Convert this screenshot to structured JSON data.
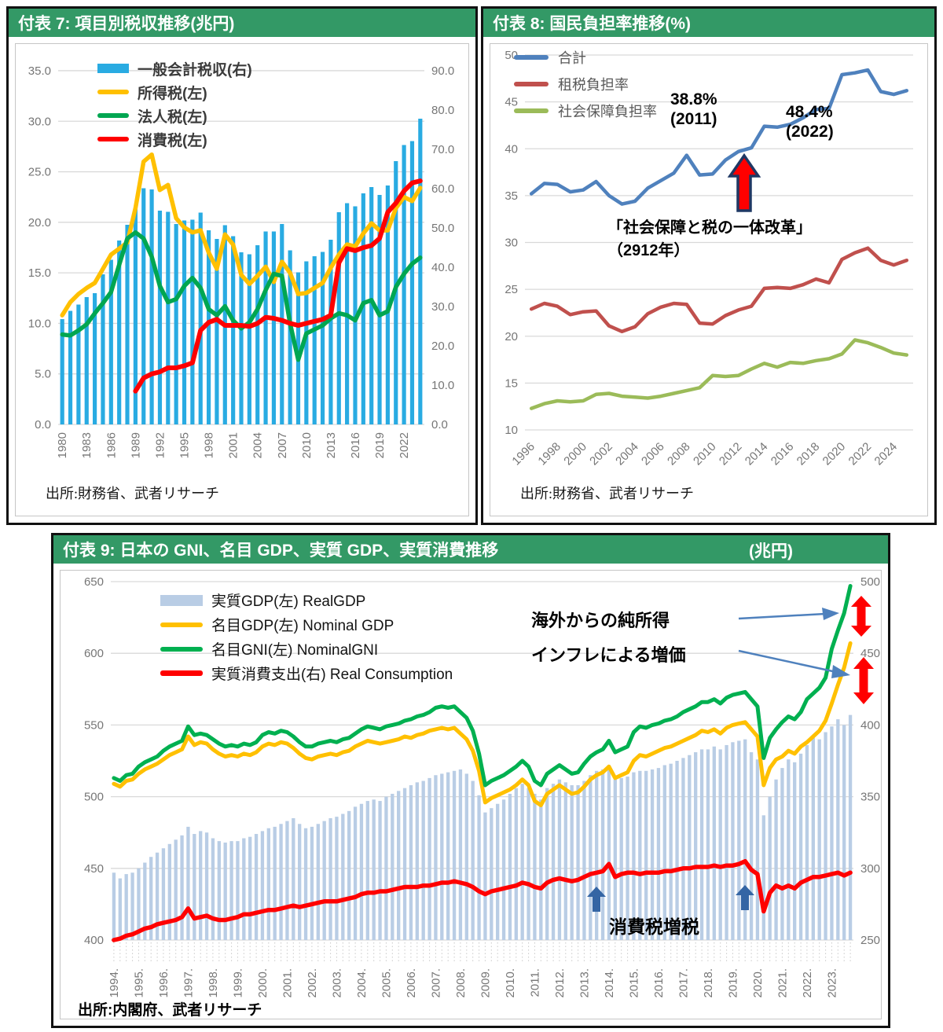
{
  "chart_data": [
    {
      "id": "fuhyo7",
      "type": "bar+line",
      "title": "付表 7: 項目別税収推移(兆円)",
      "source": "出所:財務省、武者リサーチ",
      "x_range": [
        1980,
        2024
      ],
      "frequency": "annual",
      "x_tick_labels": [
        "1980",
        "1983",
        "1986",
        "1989",
        "1992",
        "1995",
        "1998",
        "2001",
        "2004",
        "2007",
        "2010",
        "2013",
        "2016",
        "2019",
        "2022"
      ],
      "x_tick_step": 3,
      "left_axis": {
        "min": 0,
        "max": 37.33,
        "ticks": [
          0,
          5,
          10,
          15,
          20,
          25,
          30,
          35
        ],
        "decimals": 1
      },
      "right_axis": {
        "min": 0,
        "max": 96,
        "ticks": [
          0,
          10,
          20,
          30,
          40,
          50,
          60,
          70,
          80,
          90
        ],
        "decimals": 1
      },
      "grid": true,
      "legend_position": "top-left-inside",
      "series": [
        {
          "name": "一般会計税収(右)",
          "type": "bar",
          "axis": "right",
          "color": "#29ABE2",
          "barw": 0.5,
          "values": [
            26.8,
            28.9,
            30.5,
            32.4,
            33.4,
            38.2,
            41.9,
            46.8,
            50.8,
            54.9,
            60.1,
            59.8,
            54.4,
            54.1,
            51.0,
            51.9,
            52.1,
            53.9,
            49.4,
            47.2,
            50.7,
            47.9,
            43.8,
            43.3,
            45.6,
            49.1,
            49.1,
            51.0,
            44.3,
            38.7,
            41.5,
            42.8,
            43.9,
            47.0,
            54.0,
            56.3,
            55.5,
            58.8,
            60.4,
            58.4,
            60.8,
            67.0,
            71.1,
            72.1,
            77.8
          ]
        },
        {
          "name": "所得税(左)",
          "type": "line",
          "axis": "left",
          "color": "#FFC000",
          "lw": 5.5,
          "values": [
            10.8,
            12.1,
            12.9,
            13.5,
            14.0,
            15.4,
            16.8,
            17.4,
            18.0,
            21.4,
            26.0,
            26.7,
            23.2,
            23.7,
            20.4,
            19.5,
            19.0,
            19.2,
            17.0,
            15.4,
            18.8,
            17.8,
            14.8,
            13.9,
            14.7,
            15.6,
            14.1,
            16.1,
            15.0,
            12.9,
            13.0,
            13.5,
            14.0,
            15.5,
            16.8,
            17.8,
            17.6,
            18.9,
            19.9,
            19.2,
            19.2,
            21.4,
            22.5,
            22.1,
            23.4
          ]
        },
        {
          "name": "法人税(左)",
          "type": "line",
          "axis": "left",
          "color": "#00A651",
          "lw": 5.5,
          "values": [
            8.9,
            8.8,
            9.3,
            9.9,
            11.0,
            12.0,
            13.1,
            15.8,
            18.4,
            19.0,
            18.4,
            16.6,
            13.7,
            12.1,
            12.4,
            13.7,
            14.5,
            13.5,
            11.4,
            10.8,
            11.7,
            10.3,
            9.5,
            10.1,
            11.4,
            13.3,
            14.9,
            14.7,
            10.0,
            6.4,
            9.0,
            9.4,
            9.8,
            10.5,
            11.0,
            10.8,
            10.3,
            12.0,
            12.3,
            10.8,
            11.2,
            13.6,
            14.9,
            15.9,
            16.5
          ]
        },
        {
          "name": "消費税(左)",
          "type": "line",
          "axis": "left",
          "color": "#FF0000",
          "lw": 6,
          "values": [
            null,
            null,
            null,
            null,
            null,
            null,
            null,
            null,
            null,
            3.3,
            4.6,
            5.0,
            5.2,
            5.6,
            5.6,
            5.8,
            6.1,
            9.3,
            10.1,
            10.4,
            9.8,
            9.8,
            9.8,
            9.7,
            10.0,
            10.6,
            10.5,
            10.3,
            10.0,
            9.8,
            10.0,
            10.2,
            10.4,
            10.8,
            16.0,
            17.4,
            17.2,
            17.5,
            17.7,
            18.4,
            21.0,
            21.9,
            23.1,
            23.9,
            24.1
          ]
        }
      ]
    },
    {
      "id": "fuhyo8",
      "type": "line",
      "title": "付表 8: 国民負担率推移(%)",
      "source": "出所:財務省、武者リサーチ",
      "x_range": [
        1996,
        2025
      ],
      "frequency": "annual",
      "x_tick_labels": [
        "1996",
        "1998",
        "2000",
        "2002",
        "2004",
        "2006",
        "2008",
        "2010",
        "2012",
        "2014",
        "2016",
        "2018",
        "2020",
        "2022",
        "2024"
      ],
      "x_tick_step": 2,
      "left_axis": {
        "min": 10,
        "max": 50,
        "ticks": [
          10,
          15,
          20,
          25,
          30,
          35,
          40,
          45,
          50
        ],
        "decimals": 0
      },
      "grid": true,
      "legend_position": "top-left-inside",
      "series": [
        {
          "name": "合計",
          "type": "line",
          "axis": "left",
          "color": "#4F81BD",
          "lw": 4.5,
          "values": [
            35.2,
            36.3,
            36.2,
            35.4,
            35.6,
            36.5,
            35.0,
            34.1,
            34.4,
            35.8,
            36.6,
            37.4,
            39.3,
            37.2,
            37.3,
            38.8,
            39.7,
            40.1,
            42.4,
            42.3,
            42.6,
            43.3,
            44.2,
            44.3,
            47.9,
            48.1,
            48.4,
            46.1,
            45.8,
            46.2
          ]
        },
        {
          "name": "租税負担率",
          "type": "line",
          "axis": "left",
          "color": "#C0504D",
          "lw": 4.5,
          "values": [
            22.9,
            23.5,
            23.2,
            22.3,
            22.6,
            22.7,
            21.1,
            20.5,
            21.0,
            22.4,
            23.1,
            23.5,
            23.4,
            21.4,
            21.3,
            22.2,
            22.8,
            23.2,
            25.1,
            25.2,
            25.1,
            25.5,
            26.1,
            25.7,
            28.2,
            28.9,
            29.4,
            28.1,
            27.6,
            28.1
          ]
        },
        {
          "name": "社会保障負担率",
          "type": "line",
          "axis": "left",
          "color": "#9BBB59",
          "lw": 4.5,
          "values": [
            12.3,
            12.8,
            13.1,
            13.0,
            13.1,
            13.8,
            13.9,
            13.6,
            13.5,
            13.4,
            13.6,
            13.9,
            14.2,
            14.5,
            15.8,
            15.7,
            15.8,
            16.5,
            17.1,
            16.7,
            17.2,
            17.1,
            17.4,
            17.6,
            18.1,
            19.6,
            19.3,
            18.8,
            18.2,
            18.0
          ]
        }
      ],
      "annotations": {
        "peak2011": [
          "38.8%",
          "(2011)"
        ],
        "peak2022": [
          "48.4%",
          "(2022)"
        ],
        "reform": [
          "「社会保障と税の一体改革」",
          "（2912年）"
        ]
      }
    },
    {
      "id": "fuhyo9",
      "type": "bar+line",
      "title": "付表 9:  日本の GNI、名目 GDP、実質 GDP、実質消費推移",
      "title_unit": "(兆円)",
      "source": "出所:内閣府、武者リサーチ",
      "x_start": "1994Q1",
      "x_end": "2023Q4",
      "frequency": "quarterly",
      "x_tick_labels": [
        "1994.",
        "1995.",
        "1996.",
        "1997.",
        "1998.",
        "1999.",
        "2000.",
        "2001.",
        "2002.",
        "2003.",
        "2004.",
        "2005.",
        "2006.",
        "2007.",
        "2008.",
        "2009.",
        "2010.",
        "2011.",
        "2012.",
        "2013.",
        "2014.",
        "2015.",
        "2016.",
        "2017.",
        "2018.",
        "2019.",
        "2020.",
        "2021.",
        "2022.",
        "2023."
      ],
      "x_tick_step": 4,
      "left_axis": {
        "min": 400,
        "max": 650,
        "ticks": [
          400,
          450,
          500,
          550,
          600,
          650
        ],
        "decimals": 0
      },
      "right_axis": {
        "min": 250,
        "max": 500,
        "ticks": [
          250,
          300,
          350,
          400,
          450,
          500
        ],
        "decimals": 0
      },
      "grid": true,
      "legend_position": "top-left-inside",
      "series": [
        {
          "name": "実質GDP(左) RealGDP",
          "type": "bar",
          "axis": "left",
          "color": "#B9CDE5",
          "barw": 0.55,
          "values": [
            447,
            443,
            446,
            447,
            450,
            454,
            458,
            461,
            464,
            467,
            470,
            473,
            479,
            474,
            476,
            475,
            471,
            469,
            468,
            469,
            469,
            471,
            472,
            474,
            476,
            478,
            479,
            481,
            483,
            485,
            481,
            478,
            479,
            481,
            483,
            485,
            486,
            488,
            490,
            493,
            495,
            497,
            498,
            497,
            500,
            502,
            504,
            506,
            508,
            510,
            511,
            513,
            515,
            516,
            517,
            518,
            519,
            516,
            511,
            501,
            489,
            492,
            495,
            498,
            502,
            506,
            509,
            506,
            502,
            498,
            506,
            509,
            512,
            510,
            508,
            508,
            511,
            515,
            518,
            519,
            522,
            512,
            513,
            514,
            517,
            518,
            518,
            519,
            520,
            522,
            523,
            525,
            527,
            529,
            531,
            533,
            533,
            535,
            533,
            536,
            538,
            539,
            540,
            531,
            526,
            487,
            500,
            512,
            520,
            526,
            524,
            530,
            536,
            541,
            540,
            545,
            549,
            554,
            550,
            557
          ]
        },
        {
          "name": "名目GDP(左) Nominal GDP",
          "type": "line",
          "axis": "left",
          "color": "#FFC000",
          "lw": 5,
          "values": [
            509,
            507,
            511,
            512,
            516,
            519,
            521,
            523,
            526,
            529,
            531,
            533,
            542,
            536,
            538,
            537,
            533,
            530,
            528,
            529,
            528,
            530,
            529,
            531,
            535,
            537,
            536,
            538,
            537,
            534,
            530,
            527,
            526,
            528,
            529,
            530,
            529,
            531,
            532,
            535,
            537,
            539,
            538,
            537,
            538,
            539,
            540,
            542,
            541,
            543,
            544,
            546,
            547,
            548,
            547,
            548,
            544,
            540,
            532,
            518,
            496,
            499,
            501,
            503,
            505,
            508,
            512,
            508,
            497,
            494,
            502,
            505,
            508,
            505,
            502,
            503,
            507,
            512,
            515,
            517,
            521,
            513,
            515,
            517,
            525,
            529,
            528,
            530,
            532,
            534,
            535,
            537,
            539,
            541,
            543,
            546,
            545,
            547,
            544,
            548,
            550,
            551,
            552,
            547,
            542,
            508,
            520,
            526,
            528,
            532,
            530,
            535,
            538,
            542,
            546,
            553,
            565,
            578,
            590,
            607
          ]
        },
        {
          "name": "名目GNI(左) NominalGNI",
          "type": "line",
          "axis": "left",
          "color": "#00B050",
          "lw": 5,
          "values": [
            513,
            511,
            515,
            516,
            521,
            524,
            526,
            528,
            532,
            535,
            537,
            539,
            549,
            543,
            544,
            543,
            540,
            537,
            535,
            536,
            535,
            537,
            536,
            538,
            543,
            545,
            544,
            546,
            545,
            542,
            538,
            535,
            535,
            537,
            538,
            539,
            538,
            540,
            541,
            544,
            547,
            549,
            548,
            547,
            549,
            550,
            551,
            553,
            554,
            556,
            557,
            559,
            562,
            563,
            562,
            563,
            559,
            555,
            546,
            530,
            508,
            511,
            513,
            515,
            518,
            521,
            525,
            521,
            511,
            508,
            516,
            519,
            522,
            519,
            516,
            517,
            523,
            528,
            531,
            533,
            539,
            531,
            533,
            535,
            545,
            549,
            548,
            550,
            551,
            553,
            554,
            556,
            559,
            561,
            563,
            566,
            566,
            568,
            565,
            569,
            571,
            572,
            573,
            568,
            563,
            527,
            541,
            547,
            552,
            556,
            554,
            559,
            568,
            572,
            576,
            583,
            603,
            616,
            628,
            647
          ]
        },
        {
          "name": "実質消費支出(右) Real Consumption",
          "type": "line",
          "axis": "right",
          "color": "#FF0000",
          "lw": 5.5,
          "values": [
            250,
            251,
            253,
            254,
            256,
            258,
            259,
            261,
            262,
            263,
            264,
            266,
            272,
            265,
            266,
            267,
            265,
            264,
            264,
            265,
            266,
            268,
            268,
            269,
            270,
            271,
            271,
            272,
            273,
            274,
            273,
            274,
            275,
            276,
            277,
            277,
            277,
            278,
            279,
            280,
            282,
            283,
            283,
            284,
            284,
            285,
            286,
            287,
            287,
            287,
            288,
            288,
            289,
            290,
            290,
            291,
            290,
            289,
            287,
            284,
            282,
            284,
            285,
            286,
            287,
            288,
            290,
            289,
            287,
            286,
            290,
            292,
            293,
            292,
            291,
            292,
            294,
            296,
            297,
            298,
            303,
            294,
            296,
            297,
            297,
            296,
            297,
            297,
            297,
            298,
            298,
            299,
            300,
            300,
            301,
            301,
            301,
            302,
            301,
            302,
            302,
            303,
            305,
            299,
            296,
            270,
            283,
            288,
            286,
            288,
            286,
            290,
            292,
            294,
            294,
            295,
            296,
            297,
            295,
            297
          ]
        }
      ],
      "annotations": {
        "net_income": "海外からの純所得",
        "inflation": "インフレによる増価",
        "tax_hike": "消費税増税"
      }
    }
  ],
  "colors": {
    "banner_green": "#339966",
    "grid_gray": "#d9d9d9",
    "tick_gray": "#767676",
    "block_arrow_red": "#FF0000",
    "block_arrow_navy_outline": "#1F3864",
    "callout_blue": "#4F81BD",
    "up_arrow_blue": "#3465A4"
  }
}
